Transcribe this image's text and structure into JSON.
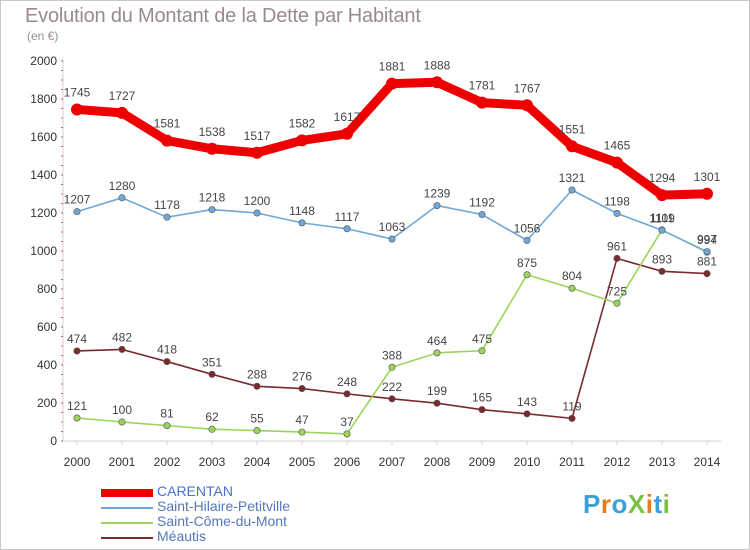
{
  "title": "Evolution du Montant de la Dette par Habitant",
  "subtitle": "(en €)",
  "logo": {
    "text": "ProXiti",
    "letters": [
      {
        "ch": "P",
        "color": "#3aa0d8"
      },
      {
        "ch": "r",
        "color": "#e87a1f"
      },
      {
        "ch": "o",
        "color": "#3aa0d8"
      },
      {
        "ch": "X",
        "color": "#7ac142"
      },
      {
        "ch": "i",
        "color": "#e87a1f"
      },
      {
        "ch": "t",
        "color": "#3aa0d8"
      },
      {
        "ch": "i",
        "color": "#7ac142"
      }
    ]
  },
  "chart_data": {
    "type": "line",
    "x": [
      2000,
      2001,
      2002,
      2003,
      2004,
      2005,
      2006,
      2007,
      2008,
      2009,
      2010,
      2011,
      2012,
      2013,
      2014
    ],
    "ylim": [
      0,
      2000
    ],
    "yticks": [
      0,
      200,
      400,
      600,
      800,
      1000,
      1200,
      1400,
      1600,
      1800,
      2000
    ],
    "grid": false,
    "legend_position": "bottom-left",
    "series": [
      {
        "name": "CARENTAN",
        "color": "#ee0000",
        "emphasis": true,
        "values": [
          1745,
          1727,
          1581,
          1538,
          1517,
          1582,
          1617,
          1881,
          1888,
          1781,
          1767,
          1551,
          1465,
          1294,
          1301
        ],
        "labels": [
          "1745",
          "1727",
          "1581",
          "1538",
          "1517",
          "1582",
          "1617",
          "1881",
          "1888",
          "1781",
          "1767",
          "1551",
          "1465",
          "1294",
          "1301"
        ]
      },
      {
        "name": "Saint-Hilaire-Petitville",
        "color": "#6fa8d6",
        "emphasis": false,
        "values": [
          1207,
          1280,
          1178,
          1218,
          1200,
          1148,
          1117,
          1063,
          1239,
          1192,
          1056,
          1321,
          1198,
          1109,
          997
        ],
        "labels": [
          "1207",
          "1280",
          "1178",
          "1218",
          "1200",
          "1148",
          "1117",
          "1063",
          "1239",
          "1192",
          "1056",
          "1321",
          "1198",
          "1109",
          "997"
        ]
      },
      {
        "name": "Saint-Côme-du-Mont",
        "color": "#9ad45a",
        "emphasis": false,
        "values": [
          121,
          100,
          81,
          62,
          55,
          47,
          37,
          388,
          464,
          475,
          875,
          804,
          725,
          1111,
          994
        ],
        "labels": [
          "121",
          "100",
          "81",
          "62",
          "55",
          "47",
          "37",
          "388",
          "464",
          "475",
          "875",
          "804",
          "725",
          "1111",
          "994"
        ]
      },
      {
        "name": "Méautis",
        "color": "#7a2a2a",
        "emphasis": false,
        "values": [
          474,
          482,
          418,
          351,
          288,
          276,
          248,
          222,
          199,
          165,
          143,
          119,
          961,
          893,
          881
        ],
        "labels": [
          "474",
          "482",
          "418",
          "351",
          "288",
          "276",
          "248",
          "222",
          "199",
          "165",
          "143",
          "119",
          "961",
          "893",
          "881"
        ]
      }
    ]
  }
}
